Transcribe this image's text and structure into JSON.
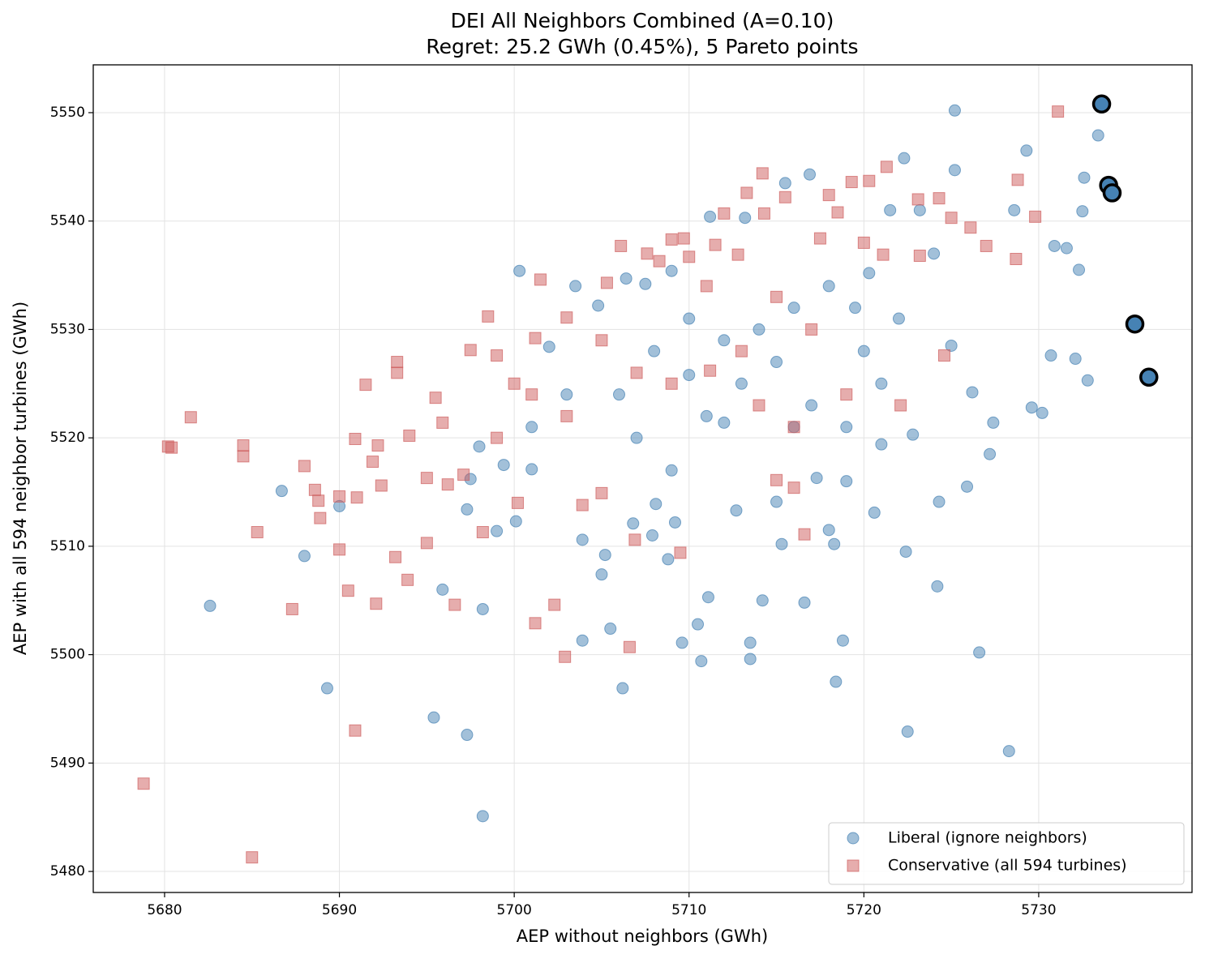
{
  "chart_data": {
    "type": "scatter",
    "title": "DEI All Neighbors Combined (A=0.10)",
    "subtitle": "Regret: 25.2 GWh (0.45%), 5 Pareto points",
    "x_label": "AEP without neighbors (GWh)",
    "y_label": "AEP with all 594 neighbor turbines (GWh)",
    "xlim": [
      5675.92,
      5738.77
    ],
    "ylim": [
      5478.06,
      5554.41
    ],
    "xticks": [
      5680,
      5690,
      5700,
      5710,
      5720,
      5730
    ],
    "yticks": [
      5480,
      5490,
      5500,
      5510,
      5520,
      5530,
      5540,
      5550
    ],
    "grid": true,
    "legend_position": "lower right",
    "series": [
      {
        "name": "Liberal (ignore neighbors)",
        "color": "#4682b4",
        "marker": "circle",
        "x": [
          5682.6,
          5686.7,
          5688.0,
          5689.3,
          5690.0,
          5695.4,
          5695.9,
          5697.3,
          5697.3,
          5697.5,
          5698.2,
          5698.2,
          5698.0,
          5699.0,
          5699.4,
          5700.1,
          5700.3,
          5701.0,
          5702.0,
          5703.5,
          5703.9,
          5703.9,
          5704.8,
          5705.0,
          5705.2,
          5705.5,
          5706.2,
          5706.4,
          5706.8,
          5707.5,
          5707.9,
          5708.1,
          5708.8,
          5709.0,
          5709.2,
          5709.6,
          5710.0,
          5710.5,
          5710.7,
          5711.1,
          5711.2,
          5712.0,
          5712.7,
          5713.2,
          5713.5,
          5713.5,
          5714.2,
          5715.0,
          5715.3,
          5715.5,
          5716.0,
          5716.6,
          5716.9,
          5717.3,
          5718.0,
          5718.3,
          5718.4,
          5718.8,
          5719.0,
          5719.5,
          5720.3,
          5720.6,
          5721.0,
          5721.5,
          5722.3,
          5722.4,
          5722.5,
          5722.8,
          5723.2,
          5724.2,
          5724.3,
          5725.0,
          5725.2,
          5725.2,
          5725.9,
          5726.2,
          5726.6,
          5727.2,
          5727.4,
          5728.3,
          5728.6,
          5729.3,
          5729.6,
          5730.2,
          5730.7,
          5730.9,
          5731.6,
          5732.3,
          5732.5,
          5732.6,
          5732.8,
          5733.4,
          5732.1,
          5706,
          5708,
          5710,
          5712,
          5714,
          5716,
          5718,
          5720,
          5722,
          5724,
          5713,
          5715,
          5717,
          5719,
          5721,
          5711,
          5709,
          5707,
          5703,
          5701
        ],
        "y": [
          5504.5,
          5515.1,
          5509.1,
          5496.9,
          5513.7,
          5494.2,
          5506.0,
          5492.6,
          5513.4,
          5516.2,
          5485.1,
          5504.2,
          5519.2,
          5511.4,
          5517.5,
          5512.3,
          5535.4,
          5517.1,
          5528.4,
          5534.0,
          5510.6,
          5501.3,
          5532.2,
          5507.4,
          5509.2,
          5502.4,
          5496.9,
          5534.7,
          5512.1,
          5534.2,
          5511.0,
          5513.9,
          5508.8,
          5535.4,
          5512.2,
          5501.1,
          5525.8,
          5502.8,
          5499.4,
          5505.3,
          5540.4,
          5521.4,
          5513.3,
          5540.3,
          5501.1,
          5499.6,
          5505.0,
          5514.1,
          5510.2,
          5543.5,
          5521.0,
          5504.8,
          5544.3,
          5516.3,
          5511.5,
          5510.2,
          5497.5,
          5501.3,
          5516.0,
          5532.0,
          5535.2,
          5513.1,
          5519.4,
          5541.0,
          5545.8,
          5509.5,
          5492.9,
          5520.3,
          5541.0,
          5506.3,
          5514.1,
          5528.5,
          5550.2,
          5544.7,
          5515.5,
          5524.2,
          5500.2,
          5518.5,
          5521.4,
          5491.1,
          5541.0,
          5546.5,
          5522.8,
          5522.3,
          5527.6,
          5537.7,
          5537.5,
          5535.5,
          5540.9,
          5544.0,
          5525.3,
          5547.9,
          5527.3,
          5524,
          5528,
          5531,
          5529,
          5530,
          5532,
          5534,
          5528,
          5531,
          5537,
          5525,
          5527,
          5523,
          5521,
          5525,
          5522,
          5517,
          5520,
          5524,
          5521
        ]
      },
      {
        "name": "Conservative (all 594 turbines)",
        "color": "#cd5c5c",
        "marker": "square",
        "x": [
          5678.8,
          5680.2,
          5680.4,
          5681.5,
          5684.5,
          5684.5,
          5685.0,
          5685.3,
          5687.3,
          5688.0,
          5688.6,
          5688.8,
          5688.9,
          5690.0,
          5690.0,
          5690.5,
          5690.9,
          5690.9,
          5691.0,
          5691.5,
          5691.9,
          5692.1,
          5692.2,
          5692.4,
          5693.2,
          5693.3,
          5693.3,
          5693.9,
          5694.0,
          5695.0,
          5695.0,
          5695.5,
          5695.9,
          5696.2,
          5696.6,
          5697.1,
          5697.5,
          5698.2,
          5698.5,
          5699.0,
          5700.0,
          5700.2,
          5701.2,
          5701.2,
          5701.5,
          5702.3,
          5702.9,
          5703.0,
          5703.9,
          5705.0,
          5705.3,
          5706.1,
          5706.6,
          5706.9,
          5707.6,
          5708.3,
          5709.0,
          5709.7,
          5709.5,
          5710.0,
          5711.2,
          5711.5,
          5712.0,
          5712.8,
          5713.3,
          5714.2,
          5714.3,
          5715.0,
          5715.5,
          5716.0,
          5716.6,
          5717.5,
          5718.0,
          5718.5,
          5719.3,
          5720.3,
          5721.1,
          5721.3,
          5722.1,
          5723.1,
          5723.2,
          5724.3,
          5725.0,
          5726.1,
          5727.0,
          5728.7,
          5728.8,
          5729.8,
          5731.1,
          5724.6,
          5717,
          5715,
          5713,
          5711,
          5709,
          5707,
          5705,
          5703,
          5701,
          5699,
          5719,
          5720,
          5716,
          5714
        ],
        "y": [
          5488.1,
          5519.2,
          5519.1,
          5521.9,
          5519.3,
          5518.3,
          5481.3,
          5511.3,
          5504.2,
          5517.4,
          5515.2,
          5514.2,
          5512.6,
          5509.7,
          5514.6,
          5505.9,
          5493.0,
          5519.9,
          5514.5,
          5524.9,
          5517.8,
          5504.7,
          5519.3,
          5515.6,
          5509.0,
          5526.0,
          5527.0,
          5506.9,
          5520.2,
          5510.3,
          5516.3,
          5523.7,
          5521.4,
          5515.7,
          5504.6,
          5516.6,
          5528.1,
          5511.3,
          5531.2,
          5527.6,
          5525.0,
          5514.0,
          5502.9,
          5529.2,
          5534.6,
          5504.6,
          5499.8,
          5531.1,
          5513.8,
          5514.9,
          5534.3,
          5537.7,
          5500.7,
          5510.6,
          5537.0,
          5536.3,
          5538.3,
          5538.4,
          5509.4,
          5536.7,
          5526.2,
          5537.8,
          5540.7,
          5536.9,
          5542.6,
          5544.4,
          5540.7,
          5516.1,
          5542.2,
          5515.4,
          5511.1,
          5538.4,
          5542.4,
          5540.8,
          5543.6,
          5543.7,
          5536.9,
          5545.0,
          5523.0,
          5542.0,
          5536.8,
          5542.1,
          5540.3,
          5539.4,
          5537.7,
          5536.5,
          5543.8,
          5540.4,
          5550.1,
          5527.6,
          5530,
          5533,
          5528,
          5534,
          5525,
          5526,
          5529,
          5522,
          5524,
          5520,
          5524,
          5538,
          5521,
          5523
        ]
      }
    ],
    "pareto_points": {
      "color": "#4682b4",
      "x": [
        5733.6,
        5734.0,
        5734.2,
        5735.5,
        5736.3
      ],
      "y": [
        5550.8,
        5543.3,
        5542.6,
        5530.5,
        5525.6
      ]
    }
  }
}
